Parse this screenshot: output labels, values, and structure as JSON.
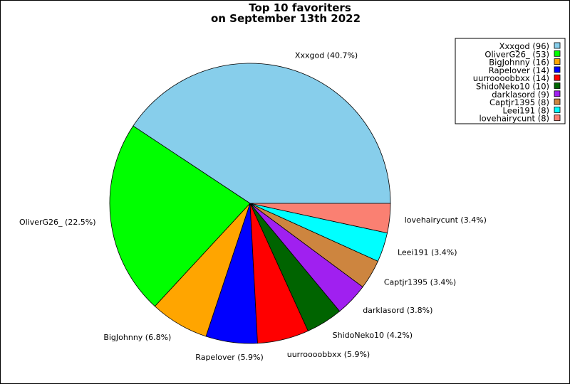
{
  "chart_data": {
    "type": "pie",
    "title": "Top 10 favoriters",
    "subtitle": "on September 13th 2022",
    "legend_position": "top-right",
    "slices": [
      {
        "name": "Xxxgod",
        "value": 96,
        "pct": "40.7%",
        "color": "#87ceeb"
      },
      {
        "name": "OliverG26_",
        "value": 53,
        "pct": "22.5%",
        "color": "#00ff00"
      },
      {
        "name": "BigJohnny",
        "value": 16,
        "pct": "6.8%",
        "color": "#ffa500"
      },
      {
        "name": "Rapelover",
        "value": 14,
        "pct": "5.9%",
        "color": "#0000ff"
      },
      {
        "name": "uurroooobbxx",
        "value": 14,
        "pct": "5.9%",
        "color": "#ff0000"
      },
      {
        "name": "ShidoNeko10",
        "value": 10,
        "pct": "4.2%",
        "color": "#006400"
      },
      {
        "name": "darklasord",
        "value": 9,
        "pct": "3.8%",
        "color": "#a020f0"
      },
      {
        "name": "Captjr1395",
        "value": 8,
        "pct": "3.4%",
        "color": "#cd853f"
      },
      {
        "name": "Leei191",
        "value": 8,
        "pct": "3.4%",
        "color": "#00ffff"
      },
      {
        "name": "lovehairycunt",
        "value": 8,
        "pct": "3.4%",
        "color": "#fa8072"
      }
    ]
  }
}
